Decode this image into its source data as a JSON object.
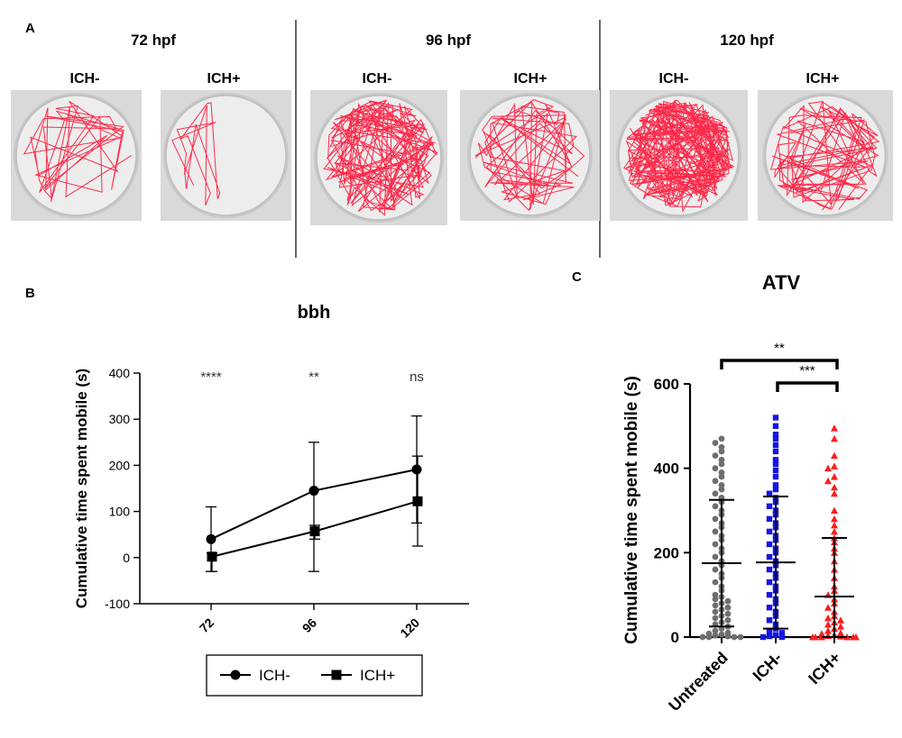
{
  "panel_a": {
    "letter": "A",
    "groups": [
      {
        "time": "72 hpf",
        "conditions": [
          "ICH-",
          "ICH+"
        ]
      },
      {
        "time": "96 hpf",
        "conditions": [
          "ICH-",
          "ICH+"
        ]
      },
      {
        "time": "120 hpf",
        "conditions": [
          "ICH-",
          "ICH+"
        ]
      }
    ],
    "track_color": "#ff2a4a"
  },
  "panel_b": {
    "letter": "B"
  },
  "panel_c": {
    "letter": "C"
  },
  "chart_data": [
    {
      "type": "line",
      "title": "bbh",
      "ylabel": "Cumulative time spent mobile (s)",
      "xlabel": "",
      "categories": [
        "72",
        "96",
        "120"
      ],
      "ylim": [
        -100,
        400
      ],
      "yticks": [
        "-100",
        "0",
        "100",
        "200",
        "300",
        "400"
      ],
      "series": [
        {
          "name": "ICH-",
          "marker": "circle",
          "values": [
            40,
            145,
            191
          ],
          "err_low": [
            -30,
            -30,
            75
          ],
          "err_high": [
            110,
            250,
            307
          ]
        },
        {
          "name": "ICH+",
          "marker": "square",
          "values": [
            2,
            57,
            122
          ],
          "err_low": [
            -30,
            40,
            25
          ],
          "err_high": [
            10,
            70,
            220
          ]
        }
      ],
      "significance": [
        "****",
        "**",
        "ns"
      ],
      "legend": "bottom"
    },
    {
      "type": "scatter",
      "title": "ATV",
      "ylabel": "Cumulative time spent mobile (s)",
      "categories": [
        "Untreated",
        "ICH-",
        "ICH+"
      ],
      "ylim": [
        0,
        600
      ],
      "yticks": [
        "0",
        "200",
        "400",
        "600"
      ],
      "colors": [
        "#6e6e6e",
        "#1515e6",
        "#ff1c1c"
      ],
      "markers": [
        "circle",
        "square",
        "triangle"
      ],
      "means": [
        175,
        177,
        96
      ],
      "sd_high": [
        325,
        333,
        235
      ],
      "sd_low": [
        25,
        20,
        0
      ],
      "points": [
        [
          470,
          460,
          450,
          440,
          430,
          420,
          410,
          400,
          390,
          380,
          370,
          360,
          350,
          340,
          330,
          320,
          310,
          300,
          290,
          280,
          270,
          260,
          250,
          240,
          230,
          220,
          210,
          200,
          190,
          180,
          170,
          160,
          150,
          140,
          130,
          120,
          110,
          100,
          95,
          90,
          85,
          80,
          75,
          70,
          65,
          60,
          55,
          50,
          45,
          40,
          35,
          30,
          25,
          20,
          15,
          10,
          8,
          6,
          4,
          2,
          0,
          0,
          0,
          0
        ],
        [
          520,
          500,
          480,
          470,
          455,
          440,
          420,
          410,
          395,
          380,
          360,
          350,
          340,
          330,
          320,
          310,
          300,
          290,
          280,
          270,
          260,
          250,
          240,
          230,
          220,
          210,
          200,
          190,
          180,
          170,
          160,
          150,
          140,
          130,
          120,
          110,
          100,
          90,
          80,
          70,
          60,
          50,
          40,
          30,
          20,
          15,
          10,
          5,
          2,
          0,
          0
        ],
        [
          495,
          470,
          430,
          405,
          400,
          380,
          370,
          355,
          340,
          300,
          280,
          265,
          250,
          235,
          225,
          210,
          200,
          180,
          160,
          140,
          120,
          110,
          100,
          90,
          80,
          70,
          60,
          50,
          45,
          40,
          35,
          30,
          25,
          20,
          15,
          10,
          8,
          5,
          3,
          2,
          0,
          0,
          0,
          0,
          0,
          0
        ]
      ],
      "significance": [
        {
          "pair": [
            "Untreated",
            "ICH+"
          ],
          "label": "**"
        },
        {
          "pair": [
            "ICH-",
            "ICH+"
          ],
          "label": "***"
        }
      ]
    }
  ]
}
